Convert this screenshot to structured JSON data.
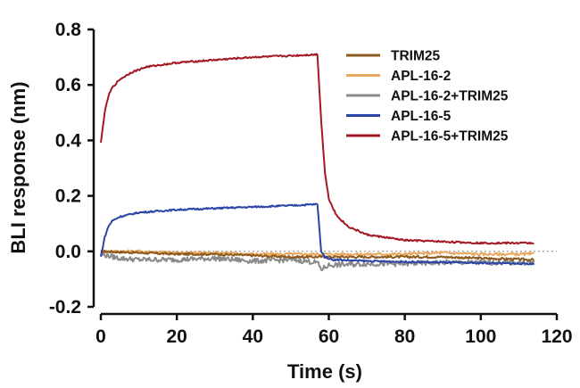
{
  "chart_data": {
    "type": "line",
    "title": "",
    "xlabel": "Time (s)",
    "ylabel": "BLI response (nm)",
    "xlim": [
      0,
      120
    ],
    "ylim": [
      -0.2,
      0.8
    ],
    "xticks": [
      0,
      20,
      40,
      60,
      80,
      100,
      120
    ],
    "yticks": [
      -0.2,
      0.0,
      0.2,
      0.4,
      0.6,
      0.8
    ],
    "ytick_labels": [
      "-0.2",
      "0.0",
      "0.2",
      "0.4",
      "0.6",
      "0.8"
    ],
    "xtick_labels": [
      "0",
      "20",
      "40",
      "60",
      "80",
      "100",
      "120"
    ],
    "grid": false,
    "zero_reference_line": "dotted",
    "legend_position": "top-right",
    "series": [
      {
        "name": "TRIM25",
        "color": "#8B5A1E",
        "points": [
          [
            0,
            0.0
          ],
          [
            10,
            -0.005
          ],
          [
            20,
            -0.01
          ],
          [
            30,
            -0.01
          ],
          [
            40,
            -0.015
          ],
          [
            50,
            -0.02
          ],
          [
            58,
            -0.02
          ],
          [
            70,
            -0.02
          ],
          [
            80,
            -0.02
          ],
          [
            90,
            -0.02
          ],
          [
            100,
            -0.025
          ],
          [
            114,
            -0.03
          ]
        ]
      },
      {
        "name": "APL-16-2",
        "color": "#E8A860",
        "points": [
          [
            0,
            0.0
          ],
          [
            10,
            0.0
          ],
          [
            20,
            -0.005
          ],
          [
            30,
            -0.005
          ],
          [
            40,
            -0.01
          ],
          [
            50,
            -0.01
          ],
          [
            58,
            -0.01
          ],
          [
            70,
            -0.01
          ],
          [
            80,
            -0.01
          ],
          [
            90,
            -0.005
          ],
          [
            100,
            -0.01
          ],
          [
            114,
            -0.01
          ]
        ]
      },
      {
        "name": "APL-16-2+TRIM25",
        "color": "#8A8A8A",
        "points": [
          [
            0,
            -0.01
          ],
          [
            5,
            -0.025
          ],
          [
            10,
            -0.03
          ],
          [
            20,
            -0.03
          ],
          [
            30,
            -0.025
          ],
          [
            40,
            -0.035
          ],
          [
            50,
            -0.03
          ],
          [
            57,
            -0.04
          ],
          [
            58,
            -0.065
          ],
          [
            60,
            -0.05
          ],
          [
            70,
            -0.045
          ],
          [
            80,
            -0.045
          ],
          [
            90,
            -0.04
          ],
          [
            100,
            -0.04
          ],
          [
            114,
            -0.04
          ]
        ]
      },
      {
        "name": "APL-16-5",
        "color": "#2B45A6",
        "points": [
          [
            0,
            -0.02
          ],
          [
            1,
            0.05
          ],
          [
            2,
            0.09
          ],
          [
            3,
            0.11
          ],
          [
            5,
            0.125
          ],
          [
            10,
            0.14
          ],
          [
            20,
            0.15
          ],
          [
            30,
            0.155
          ],
          [
            40,
            0.16
          ],
          [
            50,
            0.165
          ],
          [
            57,
            0.17
          ],
          [
            58,
            0.0
          ],
          [
            59,
            -0.02
          ],
          [
            61,
            -0.03
          ],
          [
            70,
            -0.035
          ],
          [
            90,
            -0.04
          ],
          [
            114,
            -0.045
          ]
        ]
      },
      {
        "name": "APL-16-5+TRIM25",
        "color": "#A31822",
        "points": [
          [
            0,
            0.39
          ],
          [
            1,
            0.5
          ],
          [
            2,
            0.56
          ],
          [
            3,
            0.59
          ],
          [
            5,
            0.62
          ],
          [
            8,
            0.645
          ],
          [
            12,
            0.665
          ],
          [
            20,
            0.68
          ],
          [
            30,
            0.69
          ],
          [
            40,
            0.7
          ],
          [
            50,
            0.705
          ],
          [
            57,
            0.71
          ],
          [
            58,
            0.47
          ],
          [
            59,
            0.28
          ],
          [
            60,
            0.19
          ],
          [
            62,
            0.13
          ],
          [
            65,
            0.09
          ],
          [
            70,
            0.06
          ],
          [
            80,
            0.04
          ],
          [
            90,
            0.035
          ],
          [
            100,
            0.03
          ],
          [
            114,
            0.03
          ]
        ]
      }
    ]
  }
}
